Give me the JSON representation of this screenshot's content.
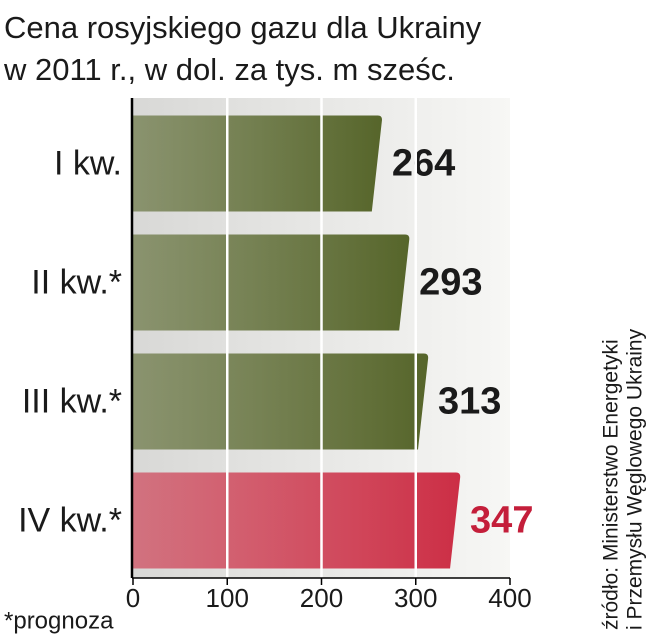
{
  "chart_data": {
    "type": "bar",
    "orientation": "horizontal",
    "title": [
      "Cena rosyjskiego gazu dla Ukrainy",
      "w 2011 r., w dol. za tys. m sześc."
    ],
    "categories": [
      "I kw.",
      "II kw.*",
      "III kw.*",
      "IV kw.*"
    ],
    "values": [
      264,
      293,
      313,
      347
    ],
    "colors": [
      "#56652a",
      "#56652a",
      "#56652a",
      "#cc2e45"
    ],
    "label_colors": [
      "#1a1a1a",
      "#1a1a1a",
      "#1a1a1a",
      "#c41e3a"
    ],
    "xlim": [
      0,
      400
    ],
    "xticks": [
      0,
      100,
      200,
      300,
      400
    ],
    "grid": true,
    "source": [
      "źródło: Ministerstwo Energetyki",
      "i Przemysłu Węglowego Ukrainy"
    ],
    "footnote": "*prognoza"
  }
}
